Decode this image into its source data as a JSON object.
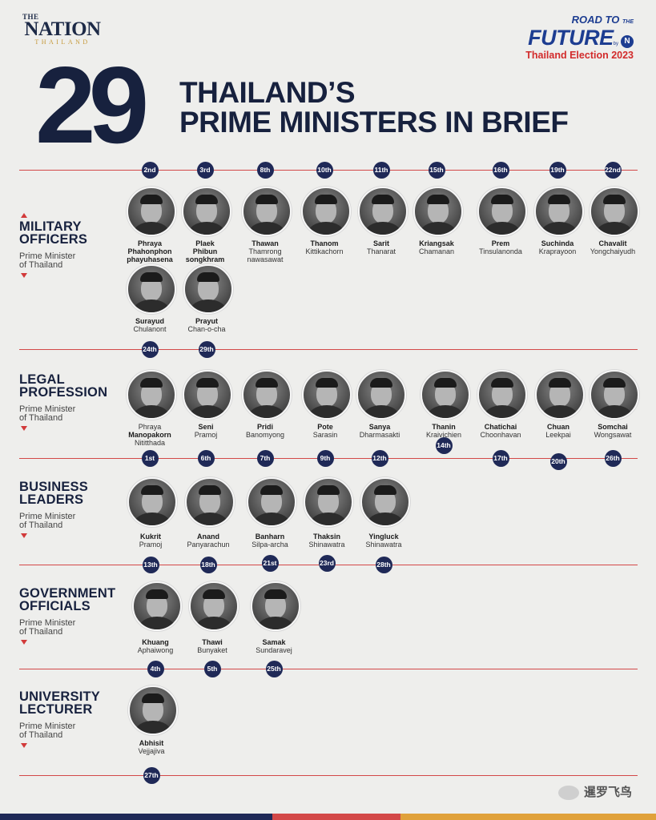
{
  "header": {
    "logo": {
      "the": "THE",
      "main": "NATION",
      "sub": "THAILAND"
    },
    "campaign": {
      "top": "ROAD TO",
      "top_small": "THE",
      "big": "FUTURE",
      "by": "by",
      "n": "N",
      "sub": "Thailand Election 2023"
    },
    "number": "29",
    "title_line1": "THAILAND’S",
    "title_line2": "PRIME MINISTERS IN BRIEF"
  },
  "categories": [
    {
      "title1": "MILITARY",
      "title2": "OFFICERS",
      "subtitle1": "Prime Minister",
      "subtitle2": "of Thailand"
    },
    {
      "title1": "LEGAL",
      "title2": "PROFESSION",
      "subtitle1": "Prime Minister",
      "subtitle2": "of Thailand"
    },
    {
      "title1": "BUSINESS",
      "title2": "LEADERS",
      "subtitle1": "Prime Minister",
      "subtitle2": "of Thailand"
    },
    {
      "title1": "GOVERNMENT",
      "title2": "OFFICIALS",
      "subtitle1": "Prime Minister",
      "subtitle2": "of Thailand"
    },
    {
      "title1": "UNIVERSITY",
      "title2": "LECTURER",
      "subtitle1": "Prime Minister",
      "subtitle2": "of Thailand"
    }
  ],
  "military": [
    {
      "order": "2nd",
      "name1": "Phraya",
      "name2": "Phahonphon",
      "name3": "phayuhasena"
    },
    {
      "order": "3rd",
      "name1": "Plaek",
      "name2": "Phibun",
      "name3": "songkhram"
    },
    {
      "order": "8th",
      "name1": "Thawan",
      "name2": "Thamrong",
      "name3": "nawasawat"
    },
    {
      "order": "10th",
      "name1": "Thanom",
      "name2": "Kittikachorn"
    },
    {
      "order": "11th",
      "name1": "Sarit",
      "name2": "Thanarat"
    },
    {
      "order": "15th",
      "name1": "Kriangsak",
      "name2": "Chamanan"
    },
    {
      "order": "16th",
      "name1": "Prem",
      "name2": "Tinsulanonda"
    },
    {
      "order": "19th",
      "name1": "Suchinda",
      "name2": "Kraprayoon"
    },
    {
      "order": "22nd",
      "name1": "Chavalit",
      "name2": "Yongchaiyudh"
    },
    {
      "order": "24th",
      "name1": "Surayud",
      "name2": "Chulanont"
    },
    {
      "order": "29th",
      "name1": "Prayut",
      "name2": "Chan-o-cha"
    }
  ],
  "legal": [
    {
      "order": "1st",
      "name1": "Phraya",
      "name2": "Manopakorn",
      "name3": "Nititthada"
    },
    {
      "order": "6th",
      "name1": "Seni",
      "name2": "Pramoj"
    },
    {
      "order": "7th",
      "name1": "Pridi",
      "name2": "Banomyong"
    },
    {
      "order": "9th",
      "name1": "Pote",
      "name2": "Sarasin"
    },
    {
      "order": "12th",
      "name1": "Sanya",
      "name2": "Dharmasakti"
    },
    {
      "order": "14th",
      "name1": "Thanin",
      "name2": "Kraivichien"
    },
    {
      "order": "17th",
      "name1": "Chatichai",
      "name2": "Choonhavan"
    },
    {
      "order": "20th",
      "name1": "Chuan",
      "name2": "Leekpai"
    },
    {
      "order": "26th",
      "name1": "Somchai",
      "name2": "Wongsawat"
    }
  ],
  "business": [
    {
      "order": "13th",
      "name1": "Kukrit",
      "name2": "Pramoj"
    },
    {
      "order": "18th",
      "name1": "Anand",
      "name2": "Panyarachun"
    },
    {
      "order": "21st",
      "name1": "Banharn",
      "name2": "Silpa-archa"
    },
    {
      "order": "23rd",
      "name1": "Thaksin",
      "name2": "Shinawatra"
    },
    {
      "order": "28th",
      "name1": "Yingluck",
      "name2": "Shinawatra"
    }
  ],
  "government": [
    {
      "order": "4th",
      "name1": "Khuang",
      "name2": "Aphaiwong"
    },
    {
      "order": "5th",
      "name1": "Thawi",
      "name2": "Bunyaket"
    },
    {
      "order": "25th",
      "name1": "Samak",
      "name2": "Sundaravej"
    }
  ],
  "university": [
    {
      "order": "27th",
      "name1": "Abhisit",
      "name2": "Vejjajiva"
    }
  ],
  "watermark": "暹罗飞鸟",
  "colors": {
    "navy": "#1f2957",
    "red": "#d34848",
    "title": "#17213e",
    "campaign_blue": "#1d3d91"
  }
}
